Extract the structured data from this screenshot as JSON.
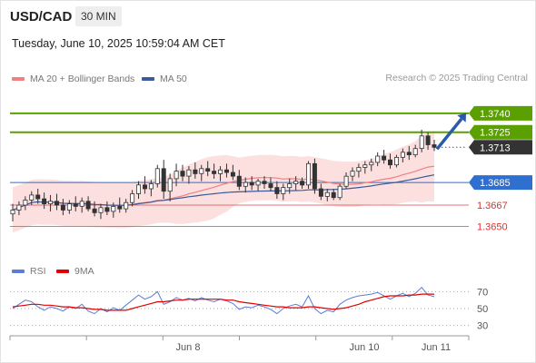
{
  "header": {
    "symbol": "USD/CAD",
    "timeframe": "30 MIN"
  },
  "timestamp": "Tuesday, June 10, 2025 10:59:04 AM CET",
  "legend": {
    "ma20_bb": {
      "label": "MA 20 + Bollinger Bands",
      "color": "#f08080"
    },
    "ma50": {
      "label": "MA 50",
      "color": "#3a5a9a"
    }
  },
  "credit": "Research © 2025 Trading Central",
  "rsi_legend": {
    "rsi": {
      "label": "RSI",
      "color": "#5b7fd6"
    },
    "ma9": {
      "label": "9MA",
      "color": "#e00000"
    }
  },
  "chart_data": [
    {
      "type": "candlestick",
      "ylim": [
        1.3628,
        1.3758
      ],
      "levels": [
        {
          "label": "1.3740",
          "value": 1.374,
          "style": "resistance",
          "color": "#5aa000"
        },
        {
          "label": "1.3725",
          "value": 1.3725,
          "style": "resistance",
          "color": "#5aa000"
        },
        {
          "label": "1.3713",
          "value": 1.3713,
          "style": "current",
          "color": "#333333"
        },
        {
          "label": "1.3685",
          "value": 1.3685,
          "style": "pivot",
          "color": "#2f6fd0"
        },
        {
          "label": "1.3667",
          "value": 1.3667,
          "style": "support",
          "color": "#e05050"
        },
        {
          "label": "1.3650",
          "value": 1.365,
          "style": "support",
          "color": "#e05050"
        }
      ],
      "x_ticks": [
        "Jun 8",
        "Jun 10",
        "Jun 11"
      ],
      "ohlc": [
        [
          1.366,
          1.3668,
          1.3654,
          1.3663
        ],
        [
          1.3663,
          1.367,
          1.3659,
          1.3667
        ],
        [
          1.3667,
          1.3674,
          1.3663,
          1.3671
        ],
        [
          1.3671,
          1.3678,
          1.3667,
          1.3675
        ],
        [
          1.3675,
          1.368,
          1.3668,
          1.3672
        ],
        [
          1.3672,
          1.3677,
          1.3664,
          1.3668
        ],
        [
          1.3668,
          1.3675,
          1.3662,
          1.367
        ],
        [
          1.367,
          1.3676,
          1.3663,
          1.3667
        ],
        [
          1.3667,
          1.3672,
          1.3659,
          1.3663
        ],
        [
          1.3663,
          1.3671,
          1.366,
          1.3668
        ],
        [
          1.3668,
          1.3674,
          1.3662,
          1.3666
        ],
        [
          1.3666,
          1.3673,
          1.3661,
          1.367
        ],
        [
          1.367,
          1.3674,
          1.3662,
          1.3664
        ],
        [
          1.3664,
          1.367,
          1.3658,
          1.3661
        ],
        [
          1.3661,
          1.3668,
          1.3656,
          1.3665
        ],
        [
          1.3665,
          1.367,
          1.3659,
          1.3662
        ],
        [
          1.3662,
          1.3669,
          1.3657,
          1.3666
        ],
        [
          1.3666,
          1.3673,
          1.3661,
          1.3664
        ],
        [
          1.3664,
          1.3672,
          1.3661,
          1.3669
        ],
        [
          1.3669,
          1.3679,
          1.3666,
          1.3676
        ],
        [
          1.3676,
          1.3686,
          1.3672,
          1.3683
        ],
        [
          1.3683,
          1.369,
          1.3676,
          1.368
        ],
        [
          1.368,
          1.3687,
          1.3674,
          1.3684
        ],
        [
          1.3684,
          1.3699,
          1.3681,
          1.3696
        ],
        [
          1.3696,
          1.3703,
          1.3672,
          1.3678
        ],
        [
          1.3678,
          1.3692,
          1.367,
          1.3688
        ],
        [
          1.3688,
          1.37,
          1.3682,
          1.3694
        ],
        [
          1.3694,
          1.3699,
          1.3686,
          1.369
        ],
        [
          1.369,
          1.3698,
          1.3684,
          1.3695
        ],
        [
          1.3695,
          1.3701,
          1.3688,
          1.3692
        ],
        [
          1.3692,
          1.3699,
          1.3686,
          1.3696
        ],
        [
          1.3696,
          1.3702,
          1.369,
          1.3694
        ],
        [
          1.3694,
          1.37,
          1.3688,
          1.3692
        ],
        [
          1.3692,
          1.3698,
          1.3686,
          1.3695
        ],
        [
          1.3695,
          1.37,
          1.3689,
          1.3693
        ],
        [
          1.3693,
          1.3699,
          1.3687,
          1.369
        ],
        [
          1.369,
          1.3695,
          1.3679,
          1.3682
        ],
        [
          1.3682,
          1.3689,
          1.3677,
          1.3685
        ],
        [
          1.3685,
          1.369,
          1.3679,
          1.3683
        ],
        [
          1.3683,
          1.3688,
          1.3678,
          1.3686
        ],
        [
          1.3686,
          1.369,
          1.368,
          1.3684
        ],
        [
          1.3684,
          1.3689,
          1.3678,
          1.3681
        ],
        [
          1.3681,
          1.3686,
          1.3672,
          1.3676
        ],
        [
          1.3676,
          1.3684,
          1.3671,
          1.3681
        ],
        [
          1.3681,
          1.3688,
          1.3676,
          1.3684
        ],
        [
          1.3684,
          1.369,
          1.3679,
          1.3686
        ],
        [
          1.3686,
          1.3689,
          1.368,
          1.3683
        ],
        [
          1.3683,
          1.3702,
          1.368,
          1.37
        ],
        [
          1.37,
          1.3704,
          1.3676,
          1.368
        ],
        [
          1.368,
          1.3684,
          1.3671,
          1.3674
        ],
        [
          1.3674,
          1.368,
          1.367,
          1.3677
        ],
        [
          1.3677,
          1.368,
          1.3671,
          1.3673
        ],
        [
          1.3673,
          1.3684,
          1.3671,
          1.3682
        ],
        [
          1.3682,
          1.3693,
          1.368,
          1.369
        ],
        [
          1.369,
          1.3697,
          1.3686,
          1.3694
        ],
        [
          1.3694,
          1.37,
          1.3689,
          1.3697
        ],
        [
          1.3697,
          1.3702,
          1.3692,
          1.3699
        ],
        [
          1.3699,
          1.3704,
          1.3694,
          1.3701
        ],
        [
          1.3701,
          1.3709,
          1.3698,
          1.3706
        ],
        [
          1.3706,
          1.3711,
          1.37,
          1.3703
        ],
        [
          1.3703,
          1.3708,
          1.3696,
          1.3699
        ],
        [
          1.3699,
          1.3707,
          1.3697,
          1.3705
        ],
        [
          1.3705,
          1.3712,
          1.3701,
          1.3709
        ],
        [
          1.3709,
          1.3714,
          1.3703,
          1.3707
        ],
        [
          1.3707,
          1.3715,
          1.3705,
          1.3712
        ],
        [
          1.3712,
          1.3727,
          1.3709,
          1.3722
        ],
        [
          1.3722,
          1.3725,
          1.3711,
          1.3715
        ],
        [
          1.3715,
          1.3719,
          1.371,
          1.3713
        ]
      ]
    },
    {
      "type": "line",
      "name_series": [
        "RSI",
        "9MA"
      ],
      "ylim": [
        20,
        80
      ],
      "y_ticks": [
        "70",
        "50",
        "30"
      ],
      "series": [
        {
          "name": "RSI",
          "values": [
            50,
            55,
            60,
            58,
            52,
            48,
            52,
            50,
            47,
            52,
            50,
            55,
            47,
            44,
            50,
            46,
            51,
            48,
            54,
            60,
            66,
            61,
            64,
            70,
            55,
            58,
            63,
            60,
            62,
            59,
            63,
            60,
            58,
            61,
            59,
            56,
            49,
            52,
            51,
            54,
            52,
            49,
            44,
            50,
            53,
            55,
            52,
            65,
            50,
            44,
            48,
            46,
            55,
            60,
            63,
            65,
            66,
            67,
            69,
            65,
            61,
            65,
            68,
            64,
            68,
            75,
            66,
            64
          ]
        },
        {
          "name": "9MA",
          "values": [
            52,
            53,
            54,
            55,
            55,
            54,
            54,
            53,
            52,
            52,
            51,
            51,
            50,
            49,
            49,
            48,
            48,
            48,
            48,
            50,
            52,
            54,
            56,
            58,
            58,
            59,
            60,
            60,
            61,
            61,
            61,
            61,
            61,
            61,
            60,
            60,
            58,
            57,
            56,
            55,
            54,
            53,
            52,
            52,
            51,
            51,
            51,
            52,
            52,
            51,
            50,
            49,
            50,
            51,
            53,
            55,
            58,
            60,
            62,
            64,
            65,
            65,
            65,
            66,
            66,
            67,
            67,
            67
          ]
        }
      ]
    }
  ]
}
